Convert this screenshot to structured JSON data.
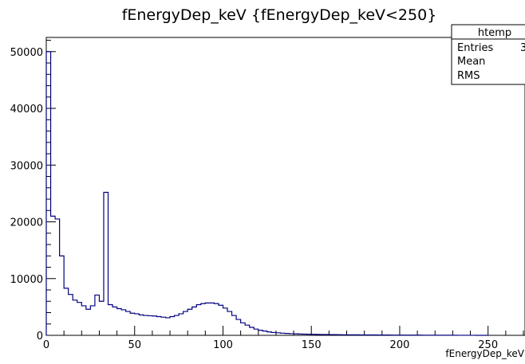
{
  "chart_data": {
    "type": "histogram",
    "title": "fEnergyDep_keV {fEnergyDep_keV<250}",
    "xlabel": "fEnergyDep_keV",
    "ylabel": "",
    "xlim": [
      0,
      270
    ],
    "ylim": [
      0,
      52500
    ],
    "x_ticks": [
      0,
      50,
      100,
      150,
      200,
      250
    ],
    "y_ticks": [
      0,
      10000,
      20000,
      30000,
      40000,
      50000
    ],
    "grid": false,
    "line_color": "#00007f",
    "bin_width": 2.5,
    "bin_start": 0,
    "values": [
      50000,
      21000,
      20500,
      14000,
      8300,
      7200,
      6200,
      5800,
      5200,
      4600,
      5200,
      7100,
      6000,
      25200,
      5400,
      5000,
      4700,
      4500,
      4200,
      3900,
      3800,
      3600,
      3500,
      3450,
      3400,
      3300,
      3200,
      3100,
      3300,
      3500,
      3800,
      4200,
      4600,
      5000,
      5400,
      5600,
      5700,
      5700,
      5600,
      5300,
      4800,
      4200,
      3500,
      2800,
      2200,
      1800,
      1400,
      1100,
      900,
      750,
      600,
      500,
      450,
      380,
      330,
      290,
      260,
      230,
      210,
      190,
      175,
      160,
      150,
      140,
      130,
      120,
      110,
      100,
      95,
      90,
      85,
      80,
      75,
      70,
      65,
      60,
      55,
      50,
      45,
      40,
      38,
      36,
      34,
      32,
      30,
      28,
      26,
      24,
      22,
      20,
      18,
      16,
      14,
      12,
      10,
      8,
      6,
      4,
      2,
      1
    ]
  },
  "stats_box": {
    "name": "htemp",
    "rows": [
      {
        "label": "Entries",
        "value": "3"
      },
      {
        "label": "Mean",
        "value": ""
      },
      {
        "label": "RMS",
        "value": ""
      }
    ]
  }
}
